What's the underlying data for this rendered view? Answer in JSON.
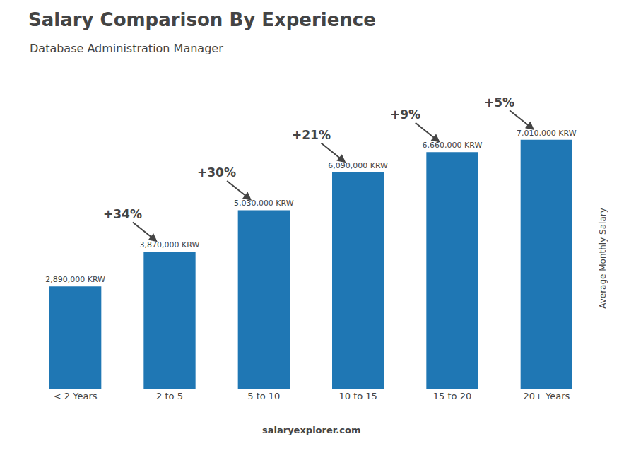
{
  "chart_data": {
    "type": "bar",
    "title": "Salary Comparison By Experience",
    "subtitle": "Database Administration Manager",
    "ylabel": "Average Monthly Salary",
    "categories": [
      "< 2 Years",
      "2 to 5",
      "5 to 10",
      "10 to 15",
      "15 to 20",
      "20+ Years"
    ],
    "values": [
      2890000,
      3870000,
      5030000,
      6090000,
      6660000,
      7010000
    ],
    "value_labels": [
      "2,890,000 KRW",
      "3,870,000 KRW",
      "5,030,000 KRW",
      "6,090,000 KRW",
      "6,660,000 KRW",
      "7,010,000 KRW"
    ],
    "data_labels": true,
    "annotations": [
      "+34%",
      "+30%",
      "+21%",
      "+9%",
      "+5%"
    ],
    "source": "salaryexplorer.com",
    "ylim": [
      0,
      7360500
    ],
    "grid": false,
    "tick_labels": "x"
  }
}
